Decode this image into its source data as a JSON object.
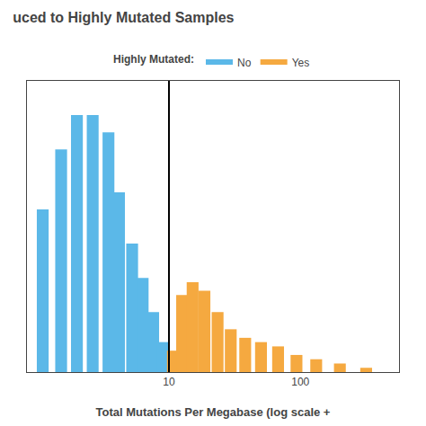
{
  "chart_data": {
    "type": "bar",
    "title": "uced to Highly Mutated Samples",
    "x_label": "Total Mutations Per Megabase (log scale +",
    "legend_title": "Highly Mutated:",
    "legend": "top",
    "log": "x",
    "grid": false,
    "tick_labels": "x",
    "xlim": [
      0.8317638,
      562.3413
    ],
    "xticks": [
      10,
      100
    ],
    "ylim": [
      0,
      0.68
    ],
    "yticks": [],
    "vline": {
      "x": 10,
      "color": "black"
    },
    "series": [
      {
        "name": "No",
        "color": "#5BB8E8",
        "x": [
          1.096478,
          1.513561,
          1.995262,
          2.630268,
          3.467369,
          4.168694,
          5.248075,
          6.309573,
          7.585776,
          8.912509
        ],
        "values": [
          0.38,
          0.52,
          0.6,
          0.6,
          0.56,
          0.42,
          0.3,
          0.22,
          0.14,
          0.07
        ]
      },
      {
        "name": "Yes",
        "color": "#F5A940",
        "x": [
          10.71519,
          12.58925,
          15.13561,
          18.62087,
          23.44229,
          29.51209,
          38.01894,
          50.11872,
          67.6083,
          93.32543,
          131.8257,
          199.5262,
          316.2278
        ],
        "values": [
          0.05,
          0.18,
          0.21,
          0.19,
          0.14,
          0.1,
          0.08,
          0.07,
          0.06,
          0.04,
          0.03,
          0.02,
          0.01
        ]
      }
    ]
  }
}
